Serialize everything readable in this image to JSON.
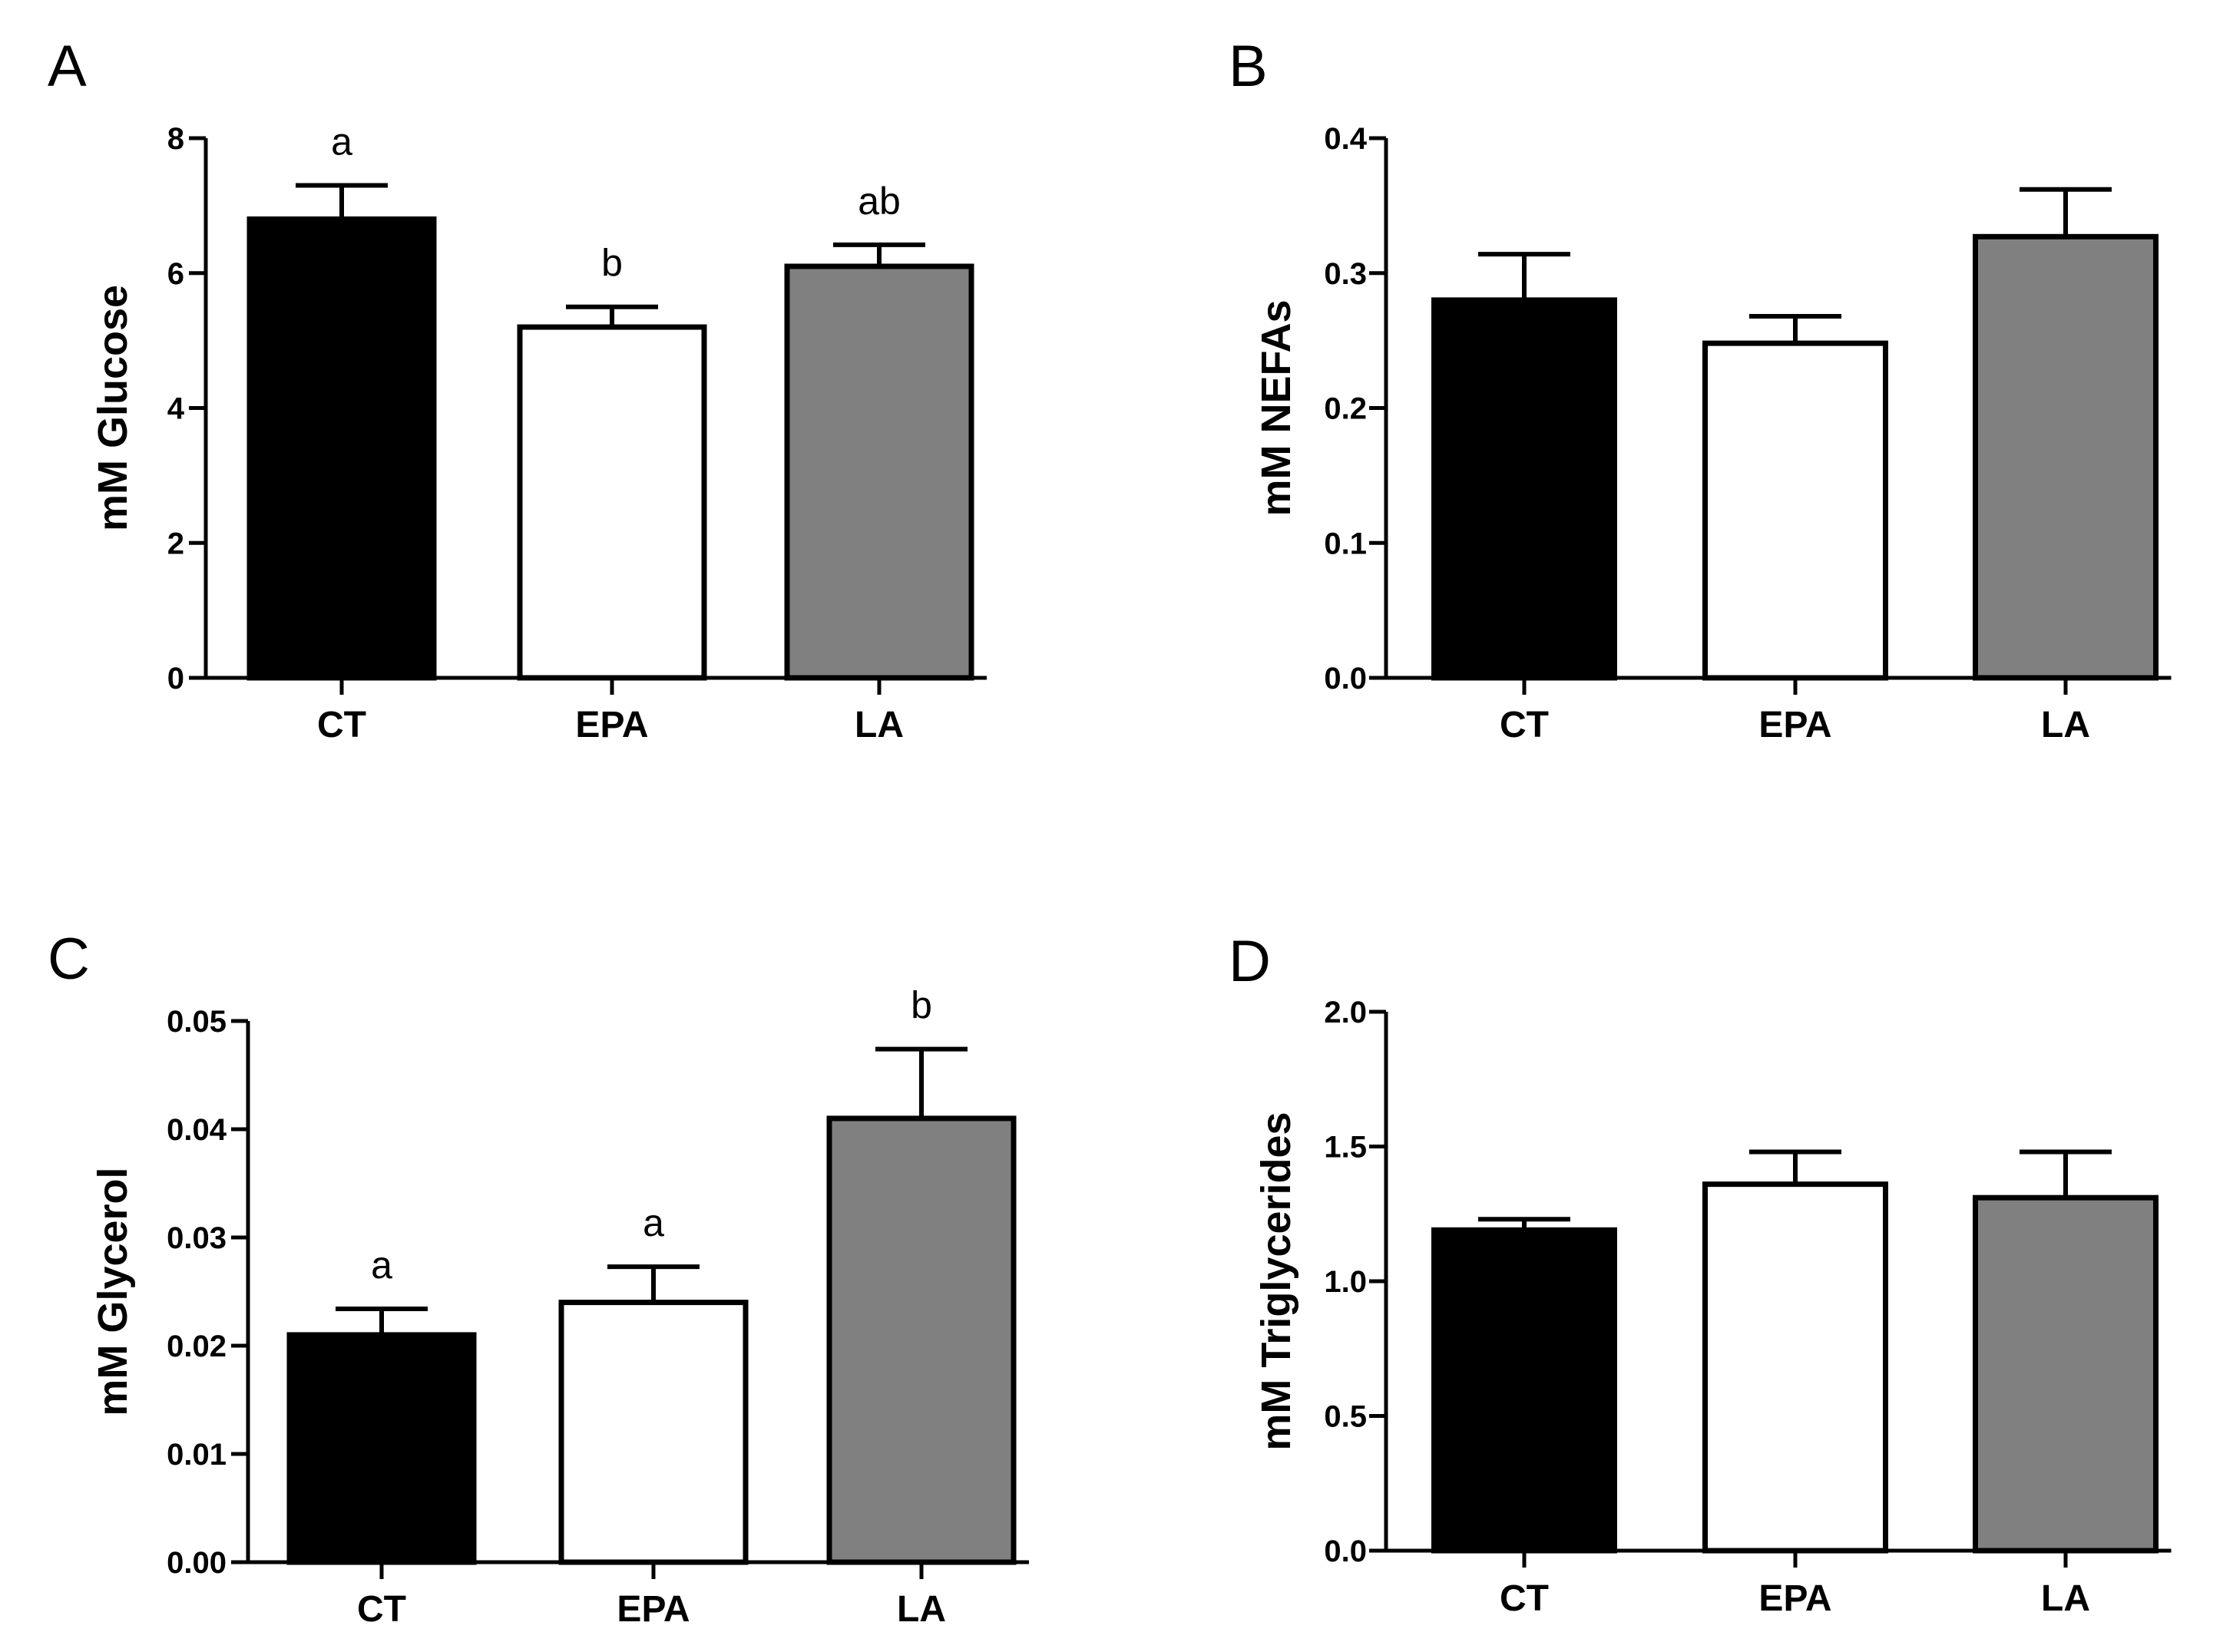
{
  "colors": {
    "CT": "#000000",
    "EPA": "#ffffff",
    "LA": "#808080"
  },
  "chart_data": [
    {
      "panel": "A",
      "type": "bar",
      "categories": [
        "CT",
        "EPA",
        "LA"
      ],
      "values": [
        6.8,
        5.2,
        6.1
      ],
      "errors": [
        0.5,
        0.3,
        0.32
      ],
      "significance": [
        "a",
        "b",
        "ab"
      ],
      "ylabel": "mM Glucose",
      "ylim": [
        0,
        8
      ],
      "yticks": [
        0,
        2,
        4,
        6,
        8
      ],
      "ytick_labels": [
        "0",
        "2",
        "4",
        "6",
        "8"
      ]
    },
    {
      "panel": "B",
      "type": "bar",
      "categories": [
        "CT",
        "EPA",
        "LA"
      ],
      "values": [
        0.28,
        0.248,
        0.327
      ],
      "errors": [
        0.034,
        0.02,
        0.035
      ],
      "significance": [
        "",
        "",
        ""
      ],
      "ylabel": "mM NEFAs",
      "ylim": [
        0,
        0.4
      ],
      "yticks": [
        0,
        0.1,
        0.2,
        0.3,
        0.4
      ],
      "ytick_labels": [
        "0.0",
        "0.1",
        "0.2",
        "0.3",
        "0.4"
      ]
    },
    {
      "panel": "C",
      "type": "bar",
      "categories": [
        "CT",
        "EPA",
        "LA"
      ],
      "values": [
        0.021,
        0.024,
        0.041
      ],
      "errors": [
        0.0024,
        0.0033,
        0.0064
      ],
      "significance": [
        "a",
        "a",
        "b"
      ],
      "ylabel": "mM Glycerol",
      "ylim": [
        0,
        0.05
      ],
      "yticks": [
        0,
        0.01,
        0.02,
        0.03,
        0.04,
        0.05
      ],
      "ytick_labels": [
        "0.00",
        "0.01",
        "0.02",
        "0.03",
        "0.04",
        "0.05"
      ]
    },
    {
      "panel": "D",
      "type": "bar",
      "categories": [
        "CT",
        "EPA",
        "LA"
      ],
      "values": [
        1.19,
        1.36,
        1.31
      ],
      "errors": [
        0.04,
        0.12,
        0.17
      ],
      "significance": [
        "",
        "",
        ""
      ],
      "ylabel": "mM Triglycerides",
      "ylim": [
        0,
        2.0
      ],
      "yticks": [
        0,
        0.5,
        1.0,
        1.5,
        2.0
      ],
      "ytick_labels": [
        "0.0",
        "0.5",
        "1.0",
        "1.5",
        "2.0"
      ]
    }
  ]
}
